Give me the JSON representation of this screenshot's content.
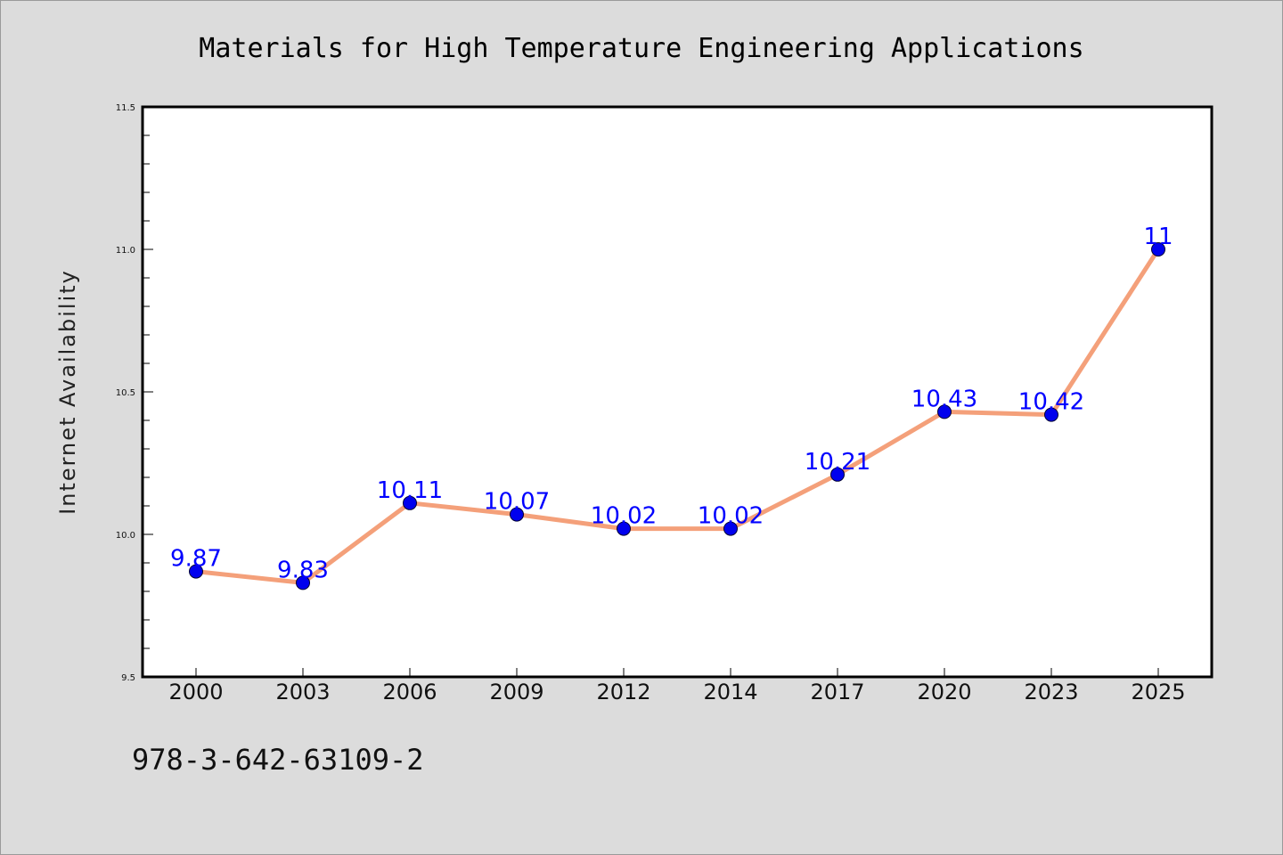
{
  "chart_data": {
    "type": "line",
    "title": "Materials for High Temperature Engineering Applications",
    "xlabel": "",
    "ylabel": "Internet Availability",
    "categories": [
      "2000",
      "2003",
      "2006",
      "2009",
      "2012",
      "2014",
      "2017",
      "2020",
      "2023",
      "2025"
    ],
    "series": [
      {
        "values": [
          9.87,
          9.83,
          10.11,
          10.07,
          10.02,
          10.02,
          10.21,
          10.43,
          10.42,
          11
        ],
        "data_labels": [
          "9.87",
          "9.83",
          "10.11",
          "10.07",
          "10.02",
          "10.02",
          "10.21",
          "10.43",
          "10.42",
          "11"
        ],
        "line_color": "#f4a07a",
        "marker_color": "#0000ee"
      }
    ],
    "ylim": [
      9.5,
      11.5
    ],
    "yticks": [
      "9.5",
      "10.0",
      "10.5",
      "11.0",
      "11.5"
    ],
    "ytick_values": [
      9.5,
      10.0,
      10.5,
      11.0,
      11.5
    ],
    "grid": false,
    "legend": "none",
    "footnote": "978-3-642-63109-2"
  },
  "colors": {
    "background": "#dcdcdc",
    "plot_area": "#ffffff",
    "data_label": "#0000ff"
  }
}
